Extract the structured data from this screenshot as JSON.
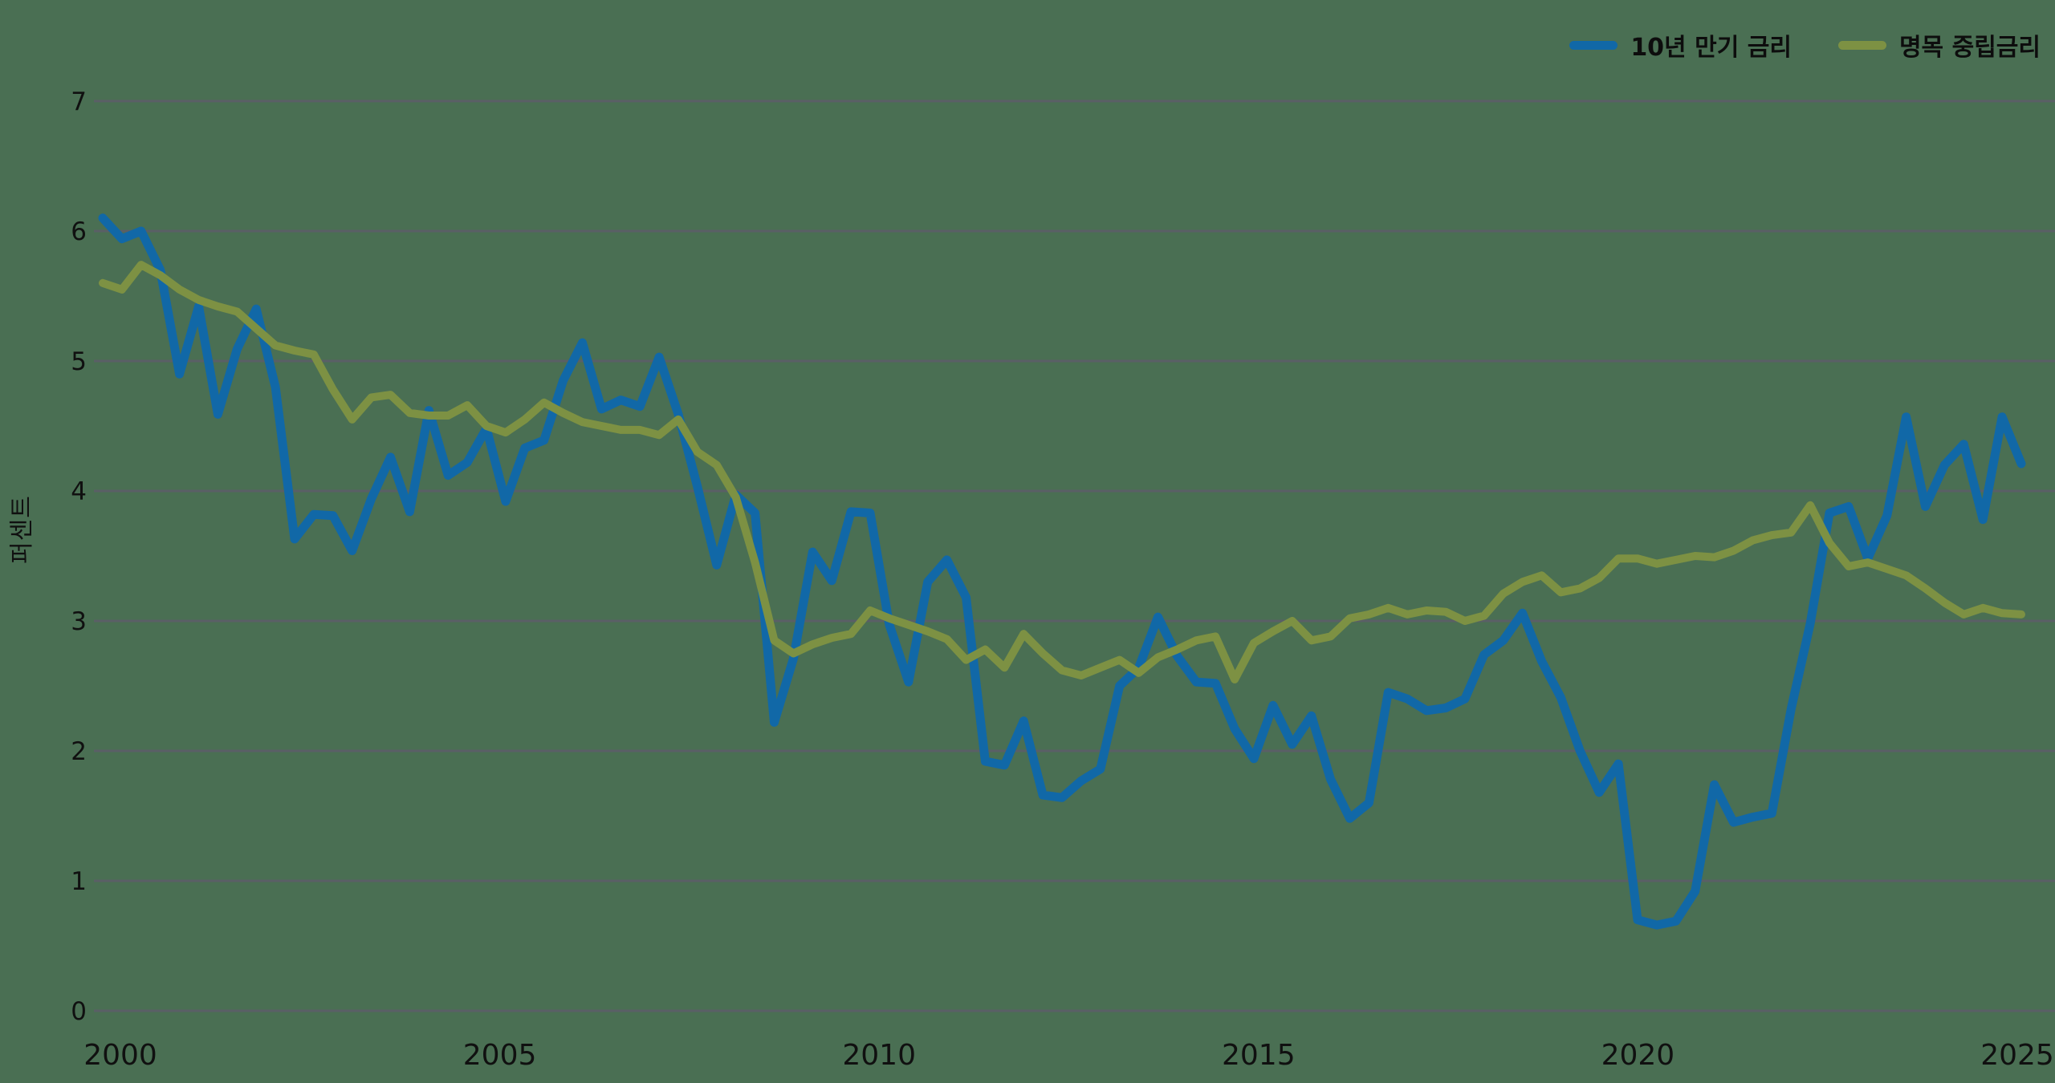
{
  "chart_data": {
    "type": "line",
    "title": "",
    "xlabel": "",
    "ylabel": "퍼센트",
    "ylim": [
      0,
      7
    ],
    "yticks": [
      0,
      1,
      2,
      3,
      4,
      5,
      6,
      7
    ],
    "xticks": [
      2000,
      2005,
      2010,
      2015,
      2020,
      2025
    ],
    "x_start": "2000Q1",
    "x_end": "2025Q1",
    "interval": "quarterly",
    "grid": "horizontal-only",
    "legend_position": "top-right",
    "series": [
      {
        "id": "ten-year-yield",
        "name": "10년 만기 금리",
        "color": "#1168A7",
        "stroke_width": 11,
        "values": [
          6.1,
          5.94,
          6.0,
          5.7,
          4.9,
          5.42,
          4.59,
          5.09,
          5.4,
          4.8,
          3.63,
          3.82,
          3.81,
          3.54,
          3.94,
          4.26,
          3.84,
          4.62,
          4.12,
          4.22,
          4.48,
          3.92,
          4.33,
          4.39,
          4.85,
          5.14,
          4.63,
          4.7,
          4.65,
          5.03,
          4.59,
          4.03,
          3.43,
          3.97,
          3.83,
          2.22,
          2.71,
          3.53,
          3.31,
          3.84,
          3.83,
          2.97,
          2.53,
          3.3,
          3.47,
          3.18,
          1.92,
          1.89,
          2.23,
          1.66,
          1.64,
          1.77,
          1.86,
          2.5,
          2.64,
          3.03,
          2.73,
          2.53,
          2.52,
          2.17,
          1.94,
          2.35,
          2.05,
          2.27,
          1.78,
          1.48,
          1.6,
          2.45,
          2.4,
          2.31,
          2.33,
          2.4,
          2.74,
          2.85,
          3.06,
          2.69,
          2.41,
          2.0,
          1.68,
          1.9,
          0.7,
          0.66,
          0.69,
          0.92,
          1.74,
          1.45,
          1.49,
          1.52,
          2.32,
          2.98,
          3.83,
          3.88,
          3.48,
          3.81,
          4.57,
          3.88,
          4.2,
          4.36,
          3.78,
          4.57,
          4.21
        ]
      },
      {
        "id": "nominal-neutral-rate",
        "name": "명목 중립금리",
        "color": "#7D9143",
        "stroke_width": 10,
        "values": [
          5.6,
          5.55,
          5.74,
          5.66,
          5.55,
          5.47,
          5.42,
          5.38,
          5.25,
          5.12,
          5.08,
          5.05,
          4.78,
          4.55,
          4.72,
          4.74,
          4.6,
          4.58,
          4.58,
          4.66,
          4.5,
          4.45,
          4.55,
          4.68,
          4.6,
          4.53,
          4.5,
          4.47,
          4.47,
          4.43,
          4.55,
          4.3,
          4.2,
          3.95,
          3.45,
          2.85,
          2.75,
          2.82,
          2.87,
          2.9,
          3.08,
          3.02,
          2.97,
          2.92,
          2.86,
          2.7,
          2.78,
          2.64,
          2.9,
          2.75,
          2.62,
          2.58,
          2.64,
          2.7,
          2.6,
          2.72,
          2.78,
          2.85,
          2.88,
          2.55,
          2.83,
          2.92,
          3.0,
          2.85,
          2.88,
          3.02,
          3.05,
          3.1,
          3.05,
          3.08,
          3.07,
          3.0,
          3.04,
          3.21,
          3.3,
          3.35,
          3.22,
          3.25,
          3.33,
          3.48,
          3.48,
          3.44,
          3.47,
          3.5,
          3.49,
          3.54,
          3.62,
          3.66,
          3.68,
          3.89,
          3.6,
          3.42,
          3.45,
          3.4,
          3.35,
          3.25,
          3.14,
          3.05,
          3.1,
          3.06,
          3.05
        ]
      }
    ]
  },
  "axes": {
    "y_title": "퍼센트",
    "y_tick_labels": [
      "0",
      "1",
      "2",
      "3",
      "4",
      "5",
      "6",
      "7"
    ],
    "x_tick_labels": [
      "2000",
      "2005",
      "2010",
      "2015",
      "2020",
      "2025"
    ]
  },
  "legend": {
    "items": [
      "10년 만기 금리",
      "명목 중립금리"
    ]
  },
  "colors": {
    "background": "#4A6F53",
    "gridline": "#5A5F66",
    "text": "#101010",
    "series_blue": "#1168A7",
    "series_olive": "#7D9143"
  }
}
